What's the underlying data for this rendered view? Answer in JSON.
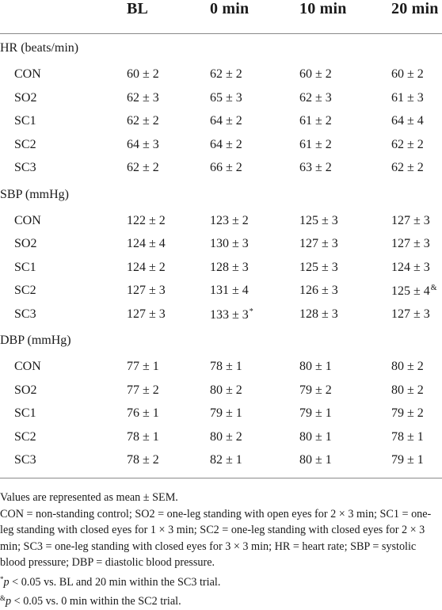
{
  "columns": [
    "BL",
    "0 min",
    "10 min",
    "20 min"
  ],
  "groups": [
    {
      "label": "HR (beats/min)",
      "rows": [
        {
          "name": "CON",
          "values": [
            "60 ± 2",
            "62 ± 2",
            "60 ± 2",
            "60 ± 2"
          ],
          "marks": [
            "",
            "",
            "",
            ""
          ]
        },
        {
          "name": "SO2",
          "values": [
            "62 ± 3",
            "65 ± 3",
            "62 ± 3",
            "61 ± 3"
          ],
          "marks": [
            "",
            "",
            "",
            ""
          ]
        },
        {
          "name": "SC1",
          "values": [
            "62 ± 2",
            "64 ± 2",
            "61 ± 2",
            "64 ± 4"
          ],
          "marks": [
            "",
            "",
            "",
            ""
          ]
        },
        {
          "name": "SC2",
          "values": [
            "64 ± 3",
            "64 ± 2",
            "61 ± 2",
            "62 ± 2"
          ],
          "marks": [
            "",
            "",
            "",
            ""
          ]
        },
        {
          "name": "SC3",
          "values": [
            "62 ± 2",
            "66 ± 2",
            "63 ± 2",
            "62 ± 2"
          ],
          "marks": [
            "",
            "",
            "",
            ""
          ]
        }
      ]
    },
    {
      "label": "SBP (mmHg)",
      "rows": [
        {
          "name": "CON",
          "values": [
            "122 ± 2",
            "123 ± 2",
            "125 ± 3",
            "127 ± 3"
          ],
          "marks": [
            "",
            "",
            "",
            ""
          ]
        },
        {
          "name": "SO2",
          "values": [
            "124 ± 4",
            "130 ± 3",
            "127 ± 3",
            "127 ± 3"
          ],
          "marks": [
            "",
            "",
            "",
            ""
          ]
        },
        {
          "name": "SC1",
          "values": [
            "124 ± 2",
            "128 ± 3",
            "125 ± 3",
            "124 ± 3"
          ],
          "marks": [
            "",
            "",
            "",
            ""
          ]
        },
        {
          "name": "SC2",
          "values": [
            "127 ± 3",
            "131 ± 4",
            "126 ± 3",
            "125 ± 4"
          ],
          "marks": [
            "",
            "",
            "",
            "&"
          ]
        },
        {
          "name": "SC3",
          "values": [
            "127 ± 3",
            "133 ± 3",
            "128 ± 3",
            "127 ± 3"
          ],
          "marks": [
            "",
            "*",
            "",
            ""
          ]
        }
      ]
    },
    {
      "label": "DBP (mmHg)",
      "rows": [
        {
          "name": "CON",
          "values": [
            "77 ± 1",
            "78 ± 1",
            "80 ± 1",
            "80 ± 2"
          ],
          "marks": [
            "",
            "",
            "",
            ""
          ]
        },
        {
          "name": "SO2",
          "values": [
            "77 ± 2",
            "80 ± 2",
            "79 ± 2",
            "80 ± 2"
          ],
          "marks": [
            "",
            "",
            "",
            ""
          ]
        },
        {
          "name": "SC1",
          "values": [
            "76 ± 1",
            "79 ± 1",
            "79 ± 1",
            "79 ± 2"
          ],
          "marks": [
            "",
            "",
            "",
            ""
          ]
        },
        {
          "name": "SC2",
          "values": [
            "78 ± 1",
            "80 ± 2",
            "80 ± 1",
            "78 ± 1"
          ],
          "marks": [
            "",
            "",
            "",
            ""
          ]
        },
        {
          "name": "SC3",
          "values": [
            "78 ± 2",
            "82 ± 1",
            "80 ± 1",
            "79 ± 1"
          ],
          "marks": [
            "",
            "",
            "",
            ""
          ]
        }
      ]
    }
  ],
  "footnotes": {
    "values": "Values are represented as mean ± SEM.",
    "abbreviations": "CON = non-standing control; SO2 = one-leg standing with open eyes for 2 × 3 min; SC1 = one-leg standing with closed eyes for 1 × 3 min; SC2 = one-leg standing with closed eyes for 2 × 3 min; SC3 = one-leg standing with closed eyes for 3 × 3 min; HR = heart rate; SBP = systolic blood pressure; DBP = diastolic blood pressure.",
    "star_mark": "*",
    "star_p": "p",
    "star_text": " < 0.05 vs. BL and 20 min within the SC3 trial.",
    "amp_mark": "&",
    "amp_p": "p",
    "amp_text": " < 0.05 vs. 0 min within the SC2 trial."
  }
}
